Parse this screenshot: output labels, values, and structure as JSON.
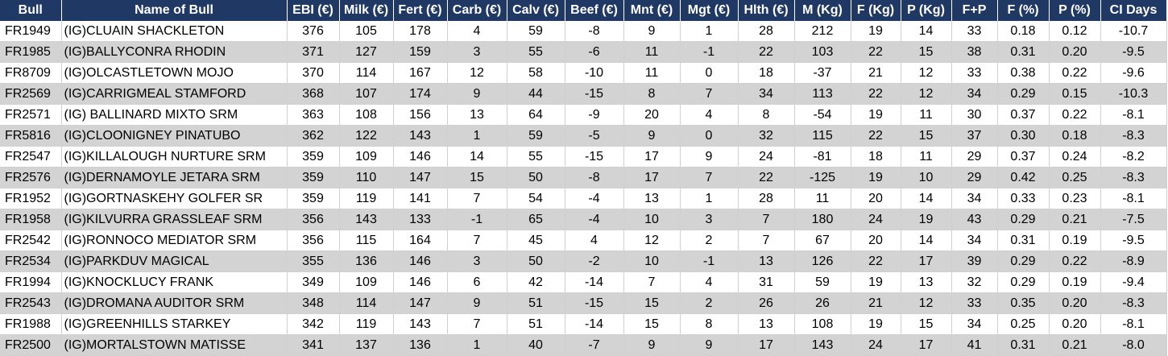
{
  "headers": [
    "Bull",
    "Name of Bull",
    "EBI (€)",
    "Milk (€)",
    "Fert (€)",
    "Carb (€)",
    "Calv (€)",
    "Beef (€)",
    "Mnt (€)",
    "Mgt (€)",
    "Hlth (€)",
    "M (Kg)",
    "F (Kg)",
    "P (Kg)",
    "F+P",
    "F (%)",
    "P (%)",
    "CI Days"
  ],
  "rows": [
    [
      "FR1949",
      "(IG)CLUAIN SHACKLETON",
      "376",
      "105",
      "178",
      "4",
      "59",
      "-8",
      "9",
      "1",
      "28",
      "212",
      "19",
      "14",
      "33",
      "0.18",
      "0.12",
      "-10.7"
    ],
    [
      "FR1985",
      "(IG)BALLYCONRA RHODIN",
      "371",
      "127",
      "159",
      "3",
      "55",
      "-6",
      "11",
      "-1",
      "22",
      "103",
      "22",
      "15",
      "38",
      "0.31",
      "0.20",
      "-9.5"
    ],
    [
      "FR8709",
      "(IG)OLCASTLETOWN MOJO",
      "370",
      "114",
      "167",
      "12",
      "58",
      "-10",
      "11",
      "0",
      "18",
      "-37",
      "21",
      "12",
      "33",
      "0.38",
      "0.22",
      "-9.6"
    ],
    [
      "FR2569",
      "(IG)CARRIGMEAL STAMFORD",
      "368",
      "107",
      "174",
      "9",
      "44",
      "-15",
      "8",
      "7",
      "34",
      "113",
      "22",
      "12",
      "34",
      "0.29",
      "0.15",
      "-10.3"
    ],
    [
      "FR2571",
      "(IG) BALLINARD MIXTO SRM",
      "363",
      "108",
      "156",
      "13",
      "64",
      "-9",
      "20",
      "4",
      "8",
      "-54",
      "19",
      "11",
      "30",
      "0.37",
      "0.22",
      "-8.1"
    ],
    [
      "FR5816",
      "(IG)CLOONIGNEY PINATUBO",
      "362",
      "122",
      "143",
      "1",
      "59",
      "-5",
      "9",
      "0",
      "32",
      "115",
      "22",
      "15",
      "37",
      "0.30",
      "0.18",
      "-8.3"
    ],
    [
      "FR2547",
      "(IG)KILLALOUGH NURTURE SRM",
      "359",
      "109",
      "146",
      "14",
      "55",
      "-15",
      "17",
      "9",
      "24",
      "-81",
      "18",
      "11",
      "29",
      "0.37",
      "0.24",
      "-8.2"
    ],
    [
      "FR2576",
      "(IG)DERNAMOYLE JETARA SRM",
      "359",
      "110",
      "147",
      "15",
      "50",
      "-8",
      "17",
      "7",
      "22",
      "-125",
      "19",
      "10",
      "29",
      "0.42",
      "0.25",
      "-8.3"
    ],
    [
      "FR1952",
      "(IG)GORTNASKEHY GOLFER SR",
      "359",
      "119",
      "141",
      "7",
      "54",
      "-4",
      "13",
      "1",
      "28",
      "11",
      "20",
      "14",
      "34",
      "0.33",
      "0.23",
      "-8.1"
    ],
    [
      "FR1958",
      "(IG)KILVURRA GRASSLEAF SRM",
      "356",
      "143",
      "133",
      "-1",
      "65",
      "-4",
      "10",
      "3",
      "7",
      "180",
      "24",
      "19",
      "43",
      "0.29",
      "0.21",
      "-7.5"
    ],
    [
      "FR2542",
      "(IG)RONNOCO MEDIATOR SRM",
      "356",
      "115",
      "164",
      "7",
      "45",
      "4",
      "12",
      "2",
      "7",
      "67",
      "20",
      "14",
      "34",
      "0.31",
      "0.19",
      "-9.5"
    ],
    [
      "FR2534",
      "(IG)PARKDUV MAGICAL",
      "355",
      "136",
      "146",
      "3",
      "50",
      "-2",
      "10",
      "-1",
      "13",
      "126",
      "22",
      "17",
      "39",
      "0.29",
      "0.22",
      "-8.9"
    ],
    [
      "FR1994",
      "(IG)KNOCKLUCY FRANK",
      "349",
      "109",
      "146",
      "6",
      "42",
      "-14",
      "7",
      "4",
      "31",
      "59",
      "19",
      "13",
      "32",
      "0.29",
      "0.19",
      "-9.4"
    ],
    [
      "FR2543",
      "(IG)DROMANA AUDITOR SRM",
      "348",
      "114",
      "147",
      "9",
      "51",
      "-15",
      "15",
      "2",
      "26",
      "26",
      "21",
      "12",
      "33",
      "0.35",
      "0.20",
      "-8.3"
    ],
    [
      "FR1988",
      "(IG)GREENHILLS STARKEY",
      "342",
      "119",
      "143",
      "7",
      "51",
      "-14",
      "15",
      "8",
      "13",
      "108",
      "19",
      "15",
      "34",
      "0.25",
      "0.20",
      "-8.1"
    ],
    [
      "FR2500",
      "(IG)MORTALSTOWN MATISSE",
      "341",
      "137",
      "136",
      "1",
      "40",
      "-7",
      "9",
      "9",
      "17",
      "143",
      "24",
      "17",
      "41",
      "0.31",
      "0.21",
      "-8.0"
    ]
  ]
}
